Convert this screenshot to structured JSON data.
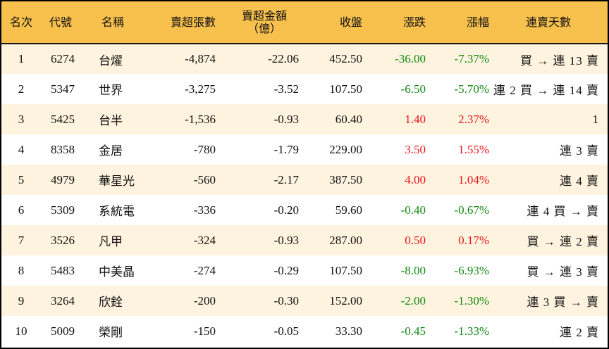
{
  "colors": {
    "header_bg": "#F8C14E",
    "odd_row_bg": "#FDF3DE",
    "even_row_bg": "#FFFFFF",
    "up": "#E8131C",
    "down": "#138A13",
    "border": "#000000"
  },
  "table": {
    "headers": {
      "rank": "名次",
      "code": "代號",
      "name": "名稱",
      "net_sell_shares": "賣超張數",
      "net_sell_amount": "賣超金額",
      "net_sell_amount_unit": "（億）",
      "close": "收盤",
      "change": "漲跌",
      "change_pct": "漲幅",
      "streak": "連賣天數"
    },
    "rows": [
      {
        "rank": "1",
        "code": "6274",
        "name": "台燿",
        "shares": "-4,874",
        "amount": "-22.06",
        "close": "452.50",
        "change": "-36.00",
        "pct": "-7.37%",
        "dir": "down",
        "streak": "買 → 連 13 賣"
      },
      {
        "rank": "2",
        "code": "5347",
        "name": "世界",
        "shares": "-3,275",
        "amount": "-3.52",
        "close": "107.50",
        "change": "-6.50",
        "pct": "-5.70%",
        "dir": "down",
        "streak": "連 2 買 → 連 14 賣"
      },
      {
        "rank": "3",
        "code": "5425",
        "name": "台半",
        "shares": "-1,536",
        "amount": "-0.93",
        "close": "60.40",
        "change": "1.40",
        "pct": "2.37%",
        "dir": "up",
        "streak": "1"
      },
      {
        "rank": "4",
        "code": "8358",
        "name": "金居",
        "shares": "-780",
        "amount": "-1.79",
        "close": "229.00",
        "change": "3.50",
        "pct": "1.55%",
        "dir": "up",
        "streak": "連 3 賣"
      },
      {
        "rank": "5",
        "code": "4979",
        "name": "華星光",
        "shares": "-560",
        "amount": "-2.17",
        "close": "387.50",
        "change": "4.00",
        "pct": "1.04%",
        "dir": "up",
        "streak": "連 4 賣"
      },
      {
        "rank": "6",
        "code": "5309",
        "name": "系統電",
        "shares": "-336",
        "amount": "-0.20",
        "close": "59.60",
        "change": "-0.40",
        "pct": "-0.67%",
        "dir": "down",
        "streak": "連 4 買 → 賣"
      },
      {
        "rank": "7",
        "code": "3526",
        "name": "凡甲",
        "shares": "-324",
        "amount": "-0.93",
        "close": "287.00",
        "change": "0.50",
        "pct": "0.17%",
        "dir": "up",
        "streak": "買 → 連 2 賣"
      },
      {
        "rank": "8",
        "code": "5483",
        "name": "中美晶",
        "shares": "-274",
        "amount": "-0.29",
        "close": "107.50",
        "change": "-8.00",
        "pct": "-6.93%",
        "dir": "down",
        "streak": "買 → 連 3 賣"
      },
      {
        "rank": "9",
        "code": "3264",
        "name": "欣銓",
        "shares": "-200",
        "amount": "-0.30",
        "close": "152.00",
        "change": "-2.00",
        "pct": "-1.30%",
        "dir": "down",
        "streak": "連 3 買 → 賣"
      },
      {
        "rank": "10",
        "code": "5009",
        "name": "榮剛",
        "shares": "-150",
        "amount": "-0.05",
        "close": "33.30",
        "change": "-0.45",
        "pct": "-1.33%",
        "dir": "down",
        "streak": "連 2 賣"
      }
    ]
  }
}
